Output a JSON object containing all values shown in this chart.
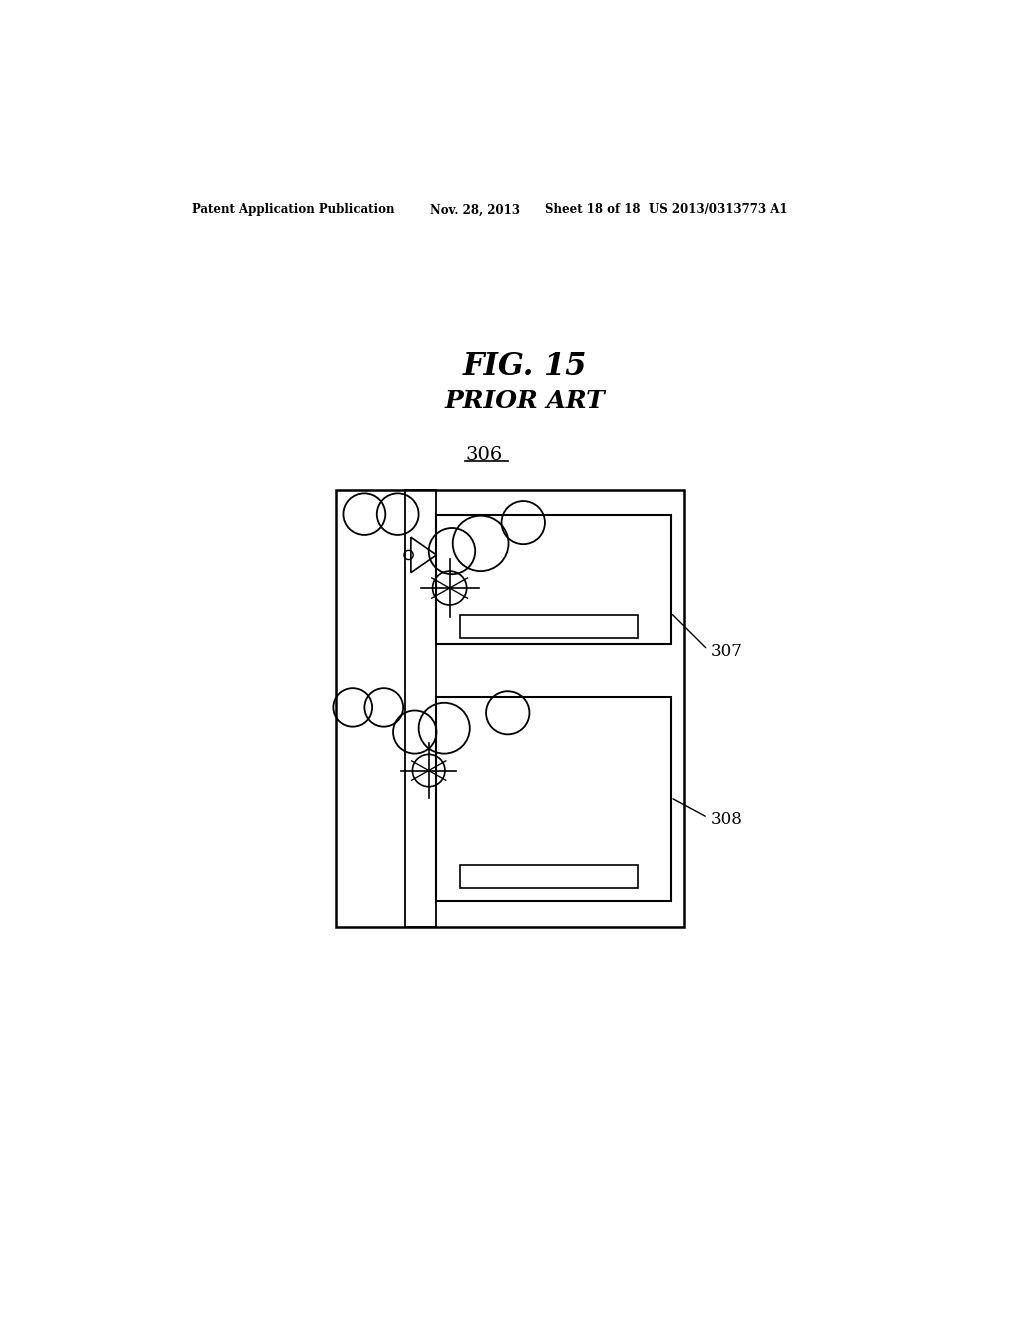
{
  "bg_color": "#ffffff",
  "page_width": 10.24,
  "page_height": 13.2,
  "header_text": "Patent Application Publication",
  "header_date": "Nov. 28, 2013",
  "header_sheet": "Sheet 18 of 18",
  "header_patent": "US 2013/0313773 A1",
  "fig_title": "FIG. 15",
  "fig_subtitle": "PRIOR ART",
  "label_306": "306",
  "label_307": "307",
  "label_308": "308"
}
